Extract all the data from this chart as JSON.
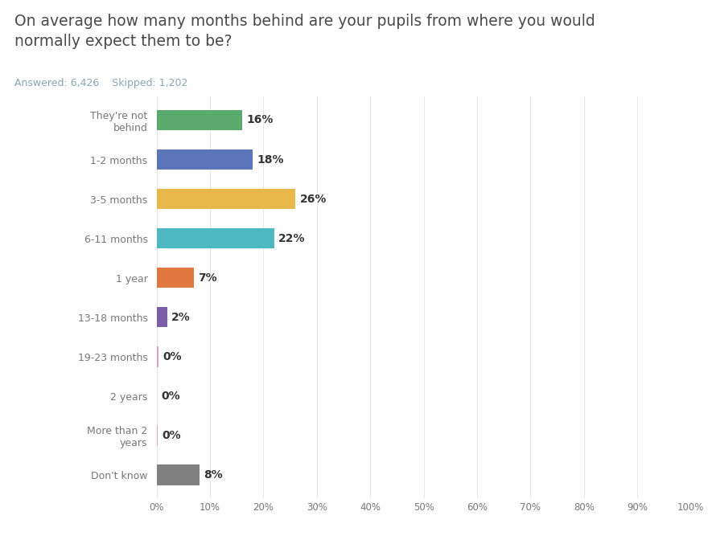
{
  "title_line1": "On average how many months behind are your pupils from where you would",
  "title_line2": "normally expect them to be?",
  "subtitle": "Answered: 6,426    Skipped: 1,202",
  "categories": [
    "They're not\nbehind",
    "1-2 months",
    "3-5 months",
    "6-11 months",
    "1 year",
    "13-18 months",
    "19-23 months",
    "2 years",
    "More than 2\nyears",
    "Don't know"
  ],
  "values": [
    16,
    18,
    26,
    22,
    7,
    2,
    0.3,
    0.1,
    0.2,
    8
  ],
  "display_values": [
    "16%",
    "18%",
    "26%",
    "22%",
    "7%",
    "2%",
    "0%",
    "0%",
    "0%",
    "8%"
  ],
  "colors": [
    "#5aaa6e",
    "#5b75b8",
    "#e8b84b",
    "#4db8c2",
    "#e07840",
    "#7b5ea7",
    "#e8a0b0",
    "#e8a0b0",
    "#e8a0b0",
    "#808080"
  ],
  "xlim": [
    0,
    100
  ],
  "xtick_labels": [
    "0%",
    "10%",
    "20%",
    "30%",
    "40%",
    "50%",
    "60%",
    "70%",
    "80%",
    "90%",
    "100%"
  ],
  "xtick_values": [
    0,
    10,
    20,
    30,
    40,
    50,
    60,
    70,
    80,
    90,
    100
  ],
  "background_color": "#ffffff",
  "title_color": "#4a4a4a",
  "subtitle_color": "#8aa5b5",
  "label_color": "#777777",
  "value_label_color": "#333333",
  "grid_color": "#e8e8e8",
  "bar_height": 0.52
}
